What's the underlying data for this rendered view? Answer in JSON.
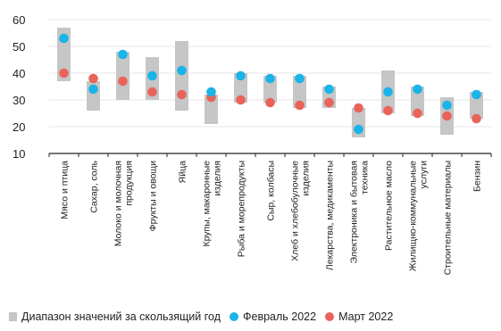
{
  "chart_data": {
    "type": "scatter",
    "title": "",
    "xlabel": "",
    "ylabel": "",
    "ylim": [
      10,
      60
    ],
    "yticks": [
      10,
      20,
      30,
      40,
      50,
      60
    ],
    "grid": true,
    "legend_position": "bottom",
    "categories": [
      "Мясо и птица",
      "Сахар, соль",
      "Молоко и молочная продукция",
      "Фрукты и овощи",
      "Яйца",
      "Крупы, макаронные изделия",
      "Рыба и морепродукты",
      "Сыр, колбасы",
      "Хлеб и хлебобулочные изделия",
      "Лекарства, медикаменты",
      "Электроника и бытовая техника",
      "Растительное масло",
      "Жилищно-коммунальные услуги",
      "Строительные материалы",
      "Бензин"
    ],
    "category_lines": [
      [
        "Мясо и птица"
      ],
      [
        "Сахар, соль"
      ],
      [
        "Молоко и молочная",
        "продукция"
      ],
      [
        "Фрукты и овощи"
      ],
      [
        "Яйца"
      ],
      [
        "Крупы, макаронные",
        "изделия"
      ],
      [
        "Рыба и морепродукты"
      ],
      [
        "Сыр, колбасы"
      ],
      [
        "Хлеб и хлебобулочные",
        "изделия"
      ],
      [
        "Лекарства, медикаменты"
      ],
      [
        "Электроника и бытовая",
        "техника"
      ],
      [
        "Растительное масло"
      ],
      [
        "Жилищно-коммунальные",
        "услуги"
      ],
      [
        "Строительные материалы"
      ],
      [
        "Бензин"
      ]
    ],
    "range_series": {
      "name": "Диапазон значений за скользящий год",
      "color": "#c6c6c6",
      "low": [
        37,
        26,
        30,
        30,
        26,
        21,
        29,
        29,
        27,
        27,
        16,
        25,
        24,
        17,
        23
      ],
      "high": [
        57,
        37,
        48,
        46,
        52,
        32,
        40,
        39,
        39,
        35,
        27,
        41,
        35,
        31,
        33
      ]
    },
    "series": [
      {
        "name": "Февраль 2022",
        "color": "#1ab4e8",
        "values": [
          53,
          34,
          47,
          39,
          41,
          33,
          39,
          38,
          38,
          34,
          19,
          33,
          34,
          28,
          32
        ]
      },
      {
        "name": "Март 2022",
        "color": "#e8645a",
        "values": [
          40,
          38,
          37,
          33,
          32,
          31,
          30,
          29,
          28,
          29,
          27,
          26,
          25,
          24,
          23
        ]
      }
    ]
  },
  "colors": {
    "grid": "#e6e6e6",
    "axis": "#222222"
  }
}
